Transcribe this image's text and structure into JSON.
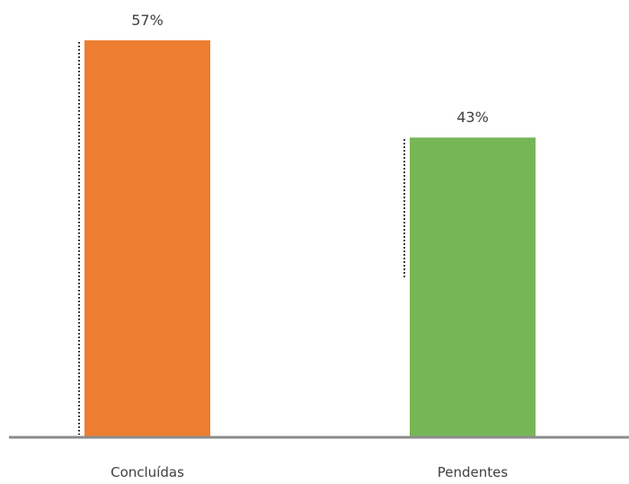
{
  "chart_data": {
    "type": "bar",
    "categories": [
      "Concluídas",
      "Pendentes"
    ],
    "values": [
      57,
      43
    ],
    "data_labels": [
      "57%",
      "43%"
    ],
    "colors": [
      "#ED7D31",
      "#76B657"
    ],
    "ylim": [
      0,
      100
    ],
    "grid": false,
    "legend": "none",
    "xlabel": "",
    "ylabel": ""
  }
}
